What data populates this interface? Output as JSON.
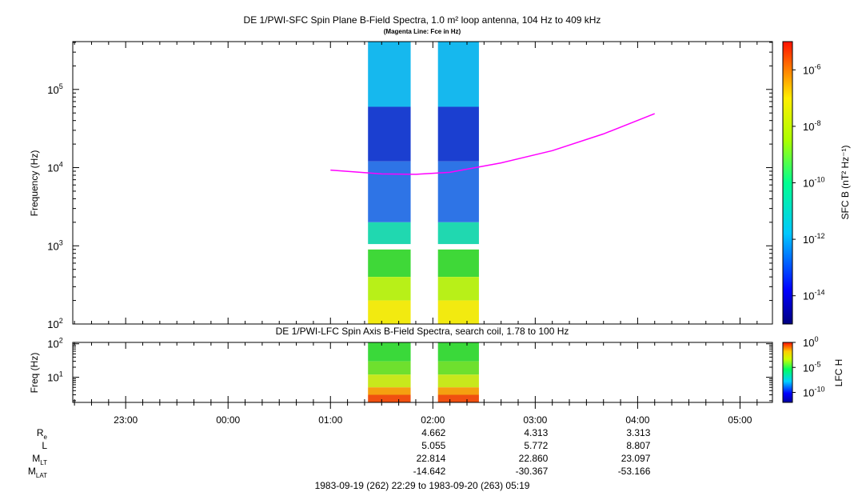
{
  "title": "DE 1/PWI-SFC  Spin Plane B-Field Spectra, 1.0 m² loop antenna, 104 Hz to 409 kHz",
  "subtitle": "(Magenta Line: Fce in Hz)",
  "footer": "1983-09-19 (262) 22:29 to 1983-09-20 (263) 05:19",
  "colors": {
    "fce_line": "#ff00ff",
    "gap": "#ffffff"
  },
  "chart_data": [
    {
      "type": "heatmap",
      "title": "DE 1/PWI-SFC  Spin Plane B-Field Spectra, 1.0 m² loop antenna, 104 Hz to 409 kHz",
      "subtitle": "(Magenta Line: Fce in Hz)",
      "ylabel": "Frequency (Hz)",
      "yscale": "log",
      "ylim": [
        100,
        409000
      ],
      "ytick_labels": [
        "10^2",
        "10^3",
        "10^4",
        "10^5"
      ],
      "xtick_labels": [
        "23:00",
        "00:00",
        "01:00",
        "02:00",
        "03:00",
        "04:00",
        "05:00"
      ],
      "xlim": [
        "22:29",
        "05:19"
      ],
      "colorbar": {
        "label": "SFC B (nT² Hz⁻¹)",
        "scale": "log",
        "range": [
          "1e-15",
          "1e-5"
        ],
        "tick_labels": [
          "10^-6",
          "10^-8",
          "10^-10",
          "10^-12",
          "10^-14"
        ]
      },
      "data_intervals": [
        [
          "01:22",
          "01:47"
        ],
        [
          "02:03",
          "02:27"
        ]
      ],
      "band_gap_hz": [
        900,
        1050
      ],
      "spectral_bands": [
        {
          "f_low": 60000,
          "f_high": 409000,
          "level": "1e-12",
          "color": "#16b8ee"
        },
        {
          "f_low": 12000,
          "f_high": 60000,
          "level": "1e-13.5",
          "color": "#1b3fd0"
        },
        {
          "f_low": 2000,
          "f_high": 12000,
          "level": "1e-13",
          "color": "#2e74e6"
        },
        {
          "f_low": 1050,
          "f_high": 2000,
          "level": "1e-11",
          "color": "#20d8b0"
        },
        {
          "f_low": 400,
          "f_high": 900,
          "level": "1e-10",
          "color": "#3fd838"
        },
        {
          "f_low": 200,
          "f_high": 400,
          "level": "1e-9",
          "color": "#b8f018"
        },
        {
          "f_low": 100,
          "f_high": 200,
          "level": "1e-8",
          "color": "#f2ea10"
        }
      ],
      "series": [
        {
          "name": "Fce",
          "x": [
            "01:00",
            "01:30",
            "01:50",
            "02:10",
            "02:40",
            "03:10",
            "03:40",
            "04:10"
          ],
          "y": [
            9300,
            8300,
            8200,
            8700,
            11500,
            16500,
            27000,
            49000
          ]
        }
      ]
    },
    {
      "type": "heatmap",
      "title": "DE 1/PWI-LFC  Spin Axis B-Field Spectra, search coil, 1.78 to 100 Hz",
      "ylabel": "Freq (Hz)",
      "yscale": "log",
      "ylim": [
        1.78,
        110
      ],
      "ytick_labels": [
        "10^1",
        "10^2"
      ],
      "colorbar": {
        "label": "LFC H",
        "scale": "log",
        "range": [
          "1e-12",
          "1e0"
        ],
        "tick_labels": [
          "10^0",
          "10^-5",
          "10^-10"
        ]
      },
      "data_intervals": [
        [
          "01:22",
          "01:47"
        ],
        [
          "02:03",
          "02:27"
        ]
      ],
      "spectral_bands": [
        {
          "f_low": 30,
          "f_high": 110,
          "color": "#3ad93a"
        },
        {
          "f_low": 12,
          "f_high": 30,
          "color": "#6ee02e"
        },
        {
          "f_low": 5,
          "f_high": 12,
          "color": "#c8e81c"
        },
        {
          "f_low": 3,
          "f_high": 5,
          "color": "#f5a010"
        },
        {
          "f_low": 1.78,
          "f_high": 3,
          "color": "#f05010"
        }
      ]
    }
  ],
  "ephemeris": {
    "labels": [
      "Re",
      "L",
      "MLT",
      "MLAT"
    ],
    "times": [
      "02:00",
      "03:00",
      "04:00"
    ],
    "rows": [
      [
        "4.662",
        "4.313",
        "3.313"
      ],
      [
        "5.055",
        "5.772",
        "8.807"
      ],
      [
        "22.814",
        "22.860",
        "23.097"
      ],
      [
        "-14.642",
        "-30.367",
        "-53.166"
      ]
    ]
  }
}
